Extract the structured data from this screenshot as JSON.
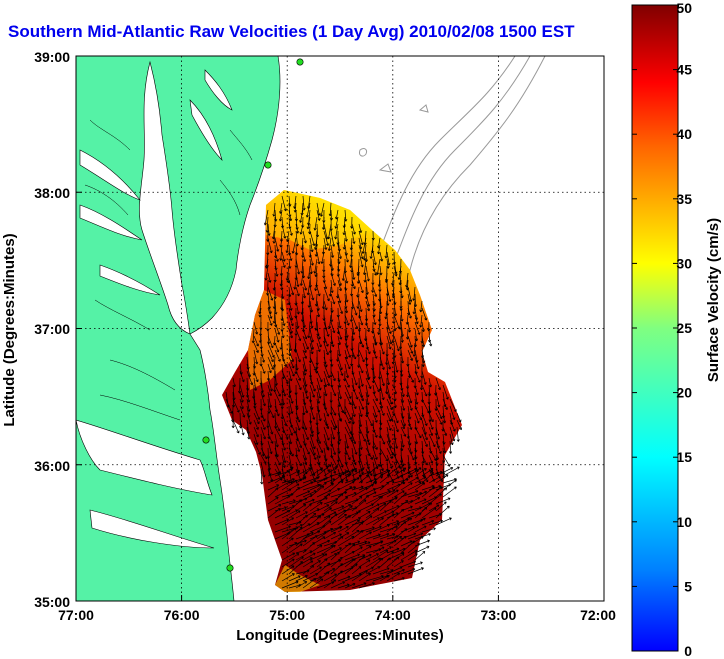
{
  "title": "Southern Mid-Atlantic Raw Velocities (1 Day Avg) 2010/02/08 1500 EST",
  "xlabel": "Longitude (Degrees:Minutes)",
  "ylabel": "Latitude (Degrees:Minutes)",
  "x_ticks": [
    "77:00",
    "76:00",
    "75:00",
    "74:00",
    "73:00",
    "72:00"
  ],
  "y_ticks": [
    "39:00",
    "38:00",
    "37:00",
    "36:00",
    "35:00"
  ],
  "colorbar": {
    "label": "Surface Velocity (cm/s)",
    "min": 0,
    "max": 50,
    "ticks": [
      "0",
      "5",
      "10",
      "15",
      "20",
      "25",
      "30",
      "35",
      "40",
      "45",
      "50"
    ]
  },
  "colors": {
    "land": "#55f2a6",
    "water": "#ffffff",
    "stations": "#22dd22",
    "title": "#0000ee",
    "bathymetry": "#999999"
  },
  "map_extent": {
    "lon_west": -77,
    "lon_east": -72,
    "lat_south": 35,
    "lat_north": 39
  }
}
